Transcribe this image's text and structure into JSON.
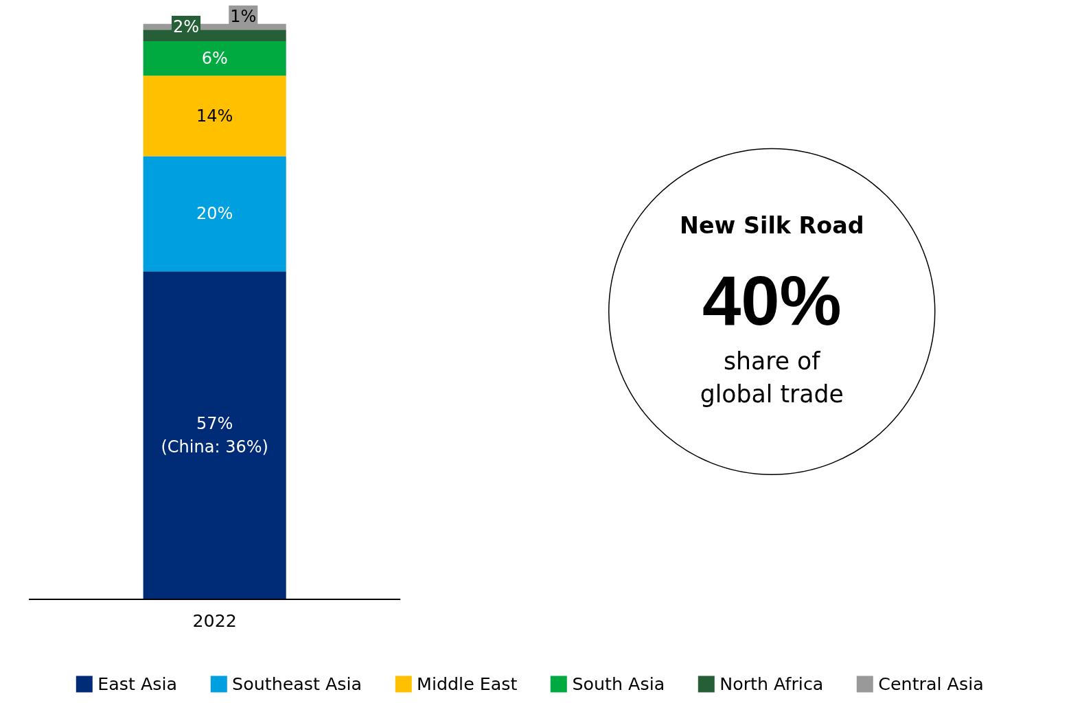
{
  "chart_data": {
    "type": "bar",
    "stacked": true,
    "categories": [
      "2022"
    ],
    "series": [
      {
        "name": "East Asia",
        "color": "#002b76",
        "values": [
          57
        ],
        "value_labels": [
          "57%\n(China: 36%)"
        ]
      },
      {
        "name": "Southeast Asia",
        "color": "#009fe0",
        "values": [
          20
        ],
        "value_labels": [
          "20%"
        ]
      },
      {
        "name": "Middle East",
        "color": "#ffc000",
        "values": [
          14
        ],
        "value_labels": [
          "14%"
        ]
      },
      {
        "name": "South Asia",
        "color": "#00aa41",
        "values": [
          6
        ],
        "value_labels": [
          "6%"
        ]
      },
      {
        "name": "North Africa",
        "color": "#255e37",
        "values": [
          2
        ],
        "value_labels": [
          "2%"
        ]
      },
      {
        "name": "Central Asia",
        "color": "#999999",
        "values": [
          1
        ],
        "value_labels": [
          "1%"
        ]
      }
    ],
    "legend": "bottom",
    "annotations": [
      "New Silk Road",
      "40%",
      "share of\nglobal trade"
    ]
  }
}
